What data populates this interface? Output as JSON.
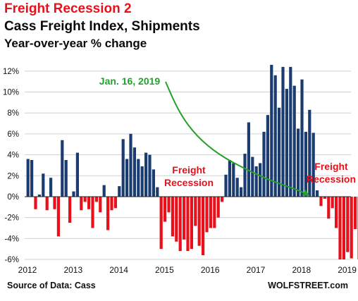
{
  "header": {
    "title": "Freight Recession 2",
    "subtitle": "Cass Freight Index, Shipments",
    "metric": "Year-over-year % change"
  },
  "footer": {
    "source": "Source of Data: Cass",
    "brand": "WOLFSTREET.com"
  },
  "colors": {
    "positive": "#1b3c71",
    "negative": "#e8101a",
    "annotation_red": "#e8101a",
    "annotation_green": "#22a22a",
    "grid": "#d0d0d0"
  },
  "chart_data": {
    "type": "bar",
    "title": "Cass Freight Index, Shipments",
    "ylabel": "Year-over-year % change",
    "ylim": [
      -6,
      13
    ],
    "yticks": [
      -6,
      -4,
      -2,
      0,
      2,
      4,
      6,
      8,
      10,
      12
    ],
    "ytick_labels": [
      "-6%",
      "-4%",
      "-2%",
      "0%",
      "2%",
      "4%",
      "6%",
      "8%",
      "10%",
      "12%"
    ],
    "year_labels": [
      "2012",
      "2013",
      "2014",
      "2015",
      "2016",
      "2017",
      "2018",
      "2019"
    ],
    "start": "2012-01",
    "values": [
      3.6,
      3.5,
      -1.2,
      0.2,
      2.2,
      -1.3,
      1.8,
      -1.2,
      -3.8,
      5.4,
      3.5,
      -2.5,
      0.5,
      4.2,
      -1.3,
      -0.5,
      -1.2,
      -3.0,
      -0.5,
      -1.5,
      1.1,
      -3.2,
      -1.3,
      -1.1,
      1.0,
      5.5,
      3.6,
      6.0,
      4.7,
      3.6,
      2.9,
      4.2,
      4.0,
      2.6,
      0.9,
      -5.0,
      -2.4,
      -1.5,
      -3.8,
      -4.3,
      -5.2,
      -4.1,
      -5.2,
      -5.0,
      -2.8,
      -4.7,
      -5.6,
      -3.4,
      -3.0,
      -3.0,
      -2.0,
      -0.5,
      2.1,
      3.5,
      3.2,
      1.8,
      0.9,
      4.1,
      7.1,
      3.8,
      2.9,
      3.2,
      6.2,
      7.8,
      12.6,
      11.6,
      8.5,
      12.4,
      10.3,
      12.4,
      10.6,
      6.5,
      11.2,
      6.2,
      8.3,
      6.1,
      0.6,
      -0.9,
      -0.2,
      -2.1,
      -1.1,
      -3.0,
      -6.0,
      -6.0,
      -5.3,
      -5.9,
      -3.1,
      -6.0,
      -3.3,
      -3.2
    ],
    "annotations": [
      {
        "text": "Freight",
        "color": "#e8101a"
      },
      {
        "text": "Recession",
        "color": "#e8101a"
      },
      {
        "text": "Freight",
        "color": "#e8101a"
      },
      {
        "text": "Recession",
        "color": "#e8101a"
      },
      {
        "text": "Jan. 16, 2019",
        "color": "#22a22a"
      }
    ],
    "grid": true
  }
}
